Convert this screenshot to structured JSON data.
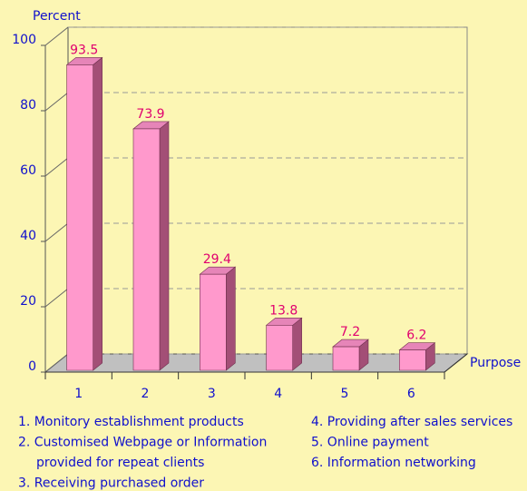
{
  "chart_data": {
    "type": "bar3d",
    "ylabel": "Percent",
    "xlabel": "Purpose",
    "categories": [
      "1",
      "2",
      "3",
      "4",
      "5",
      "6"
    ],
    "values": [
      93.5,
      73.9,
      29.4,
      13.8,
      7.2,
      6.2
    ],
    "color": "#ff99cc",
    "ylim": [
      0,
      100
    ],
    "yticks": [
      0,
      20,
      40,
      60,
      80,
      100
    ],
    "grid": true,
    "notes_left": [
      [
        "1. Monitory establishment products"
      ],
      [
        "2. Customised Webpage or Information",
        "provided for repeat clients"
      ],
      [
        "3. Receiving purchased order"
      ]
    ],
    "notes_right": [
      [
        "4. Providing after sales services"
      ],
      [
        "5. Online payment"
      ],
      [
        "6. Information networking"
      ]
    ]
  }
}
